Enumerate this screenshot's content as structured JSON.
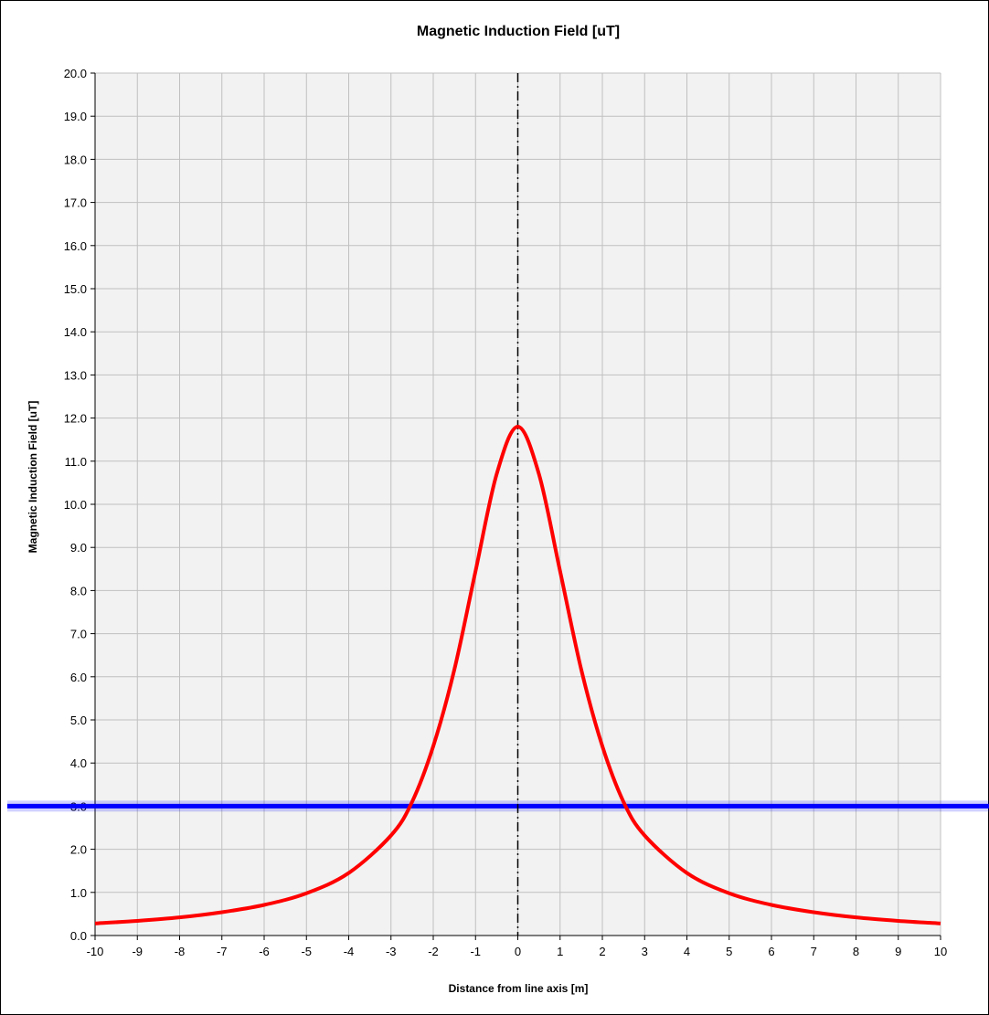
{
  "chart_data": {
    "type": "line",
    "title": "Magnetic Induction Field [uT]",
    "xlabel": "Distance from line axis [m]",
    "ylabel": "Magnetic Induction Field  [uT]",
    "xlim": [
      -10,
      10
    ],
    "ylim": [
      0,
      20
    ],
    "x_ticks": [
      "-10",
      "-9",
      "-8",
      "-7",
      "-6",
      "-5",
      "-4",
      "-3",
      "-2",
      "-1",
      "0",
      "1",
      "2",
      "3",
      "4",
      "5",
      "6",
      "7",
      "8",
      "9",
      "10"
    ],
    "y_ticks": [
      "0.0",
      "1.0",
      "2.0",
      "3.0",
      "4.0",
      "5.0",
      "6.0",
      "7.0",
      "8.0",
      "9.0",
      "10.0",
      "11.0",
      "12.0",
      "13.0",
      "14.0",
      "15.0",
      "16.0",
      "17.0",
      "18.0",
      "19.0",
      "20.0"
    ],
    "grid": true,
    "plot_background": "#f2f2f2",
    "series": [
      {
        "color": "#ff0000",
        "x": [
          -10,
          -9,
          -8,
          -7,
          -6,
          -5,
          -4,
          -3,
          -2.5,
          -2,
          -1.5,
          -1,
          -0.5,
          0,
          0.5,
          1,
          1.5,
          2,
          2.5,
          3,
          4,
          5,
          6,
          7,
          8,
          9,
          10
        ],
        "y": [
          0.28,
          0.34,
          0.42,
          0.54,
          0.71,
          0.98,
          1.45,
          2.32,
          3.1,
          4.39,
          6.17,
          8.45,
          10.7,
          11.8,
          10.7,
          8.45,
          6.17,
          4.39,
          3.1,
          2.32,
          1.45,
          0.98,
          0.71,
          0.54,
          0.42,
          0.34,
          0.28
        ]
      }
    ],
    "reference_lines": [
      {
        "orientation": "horizontal",
        "y": 3.0,
        "color": "#0000ff",
        "style": "solid"
      },
      {
        "orientation": "vertical",
        "x": 0,
        "color": "#000000",
        "style": "dash-dot"
      }
    ]
  }
}
